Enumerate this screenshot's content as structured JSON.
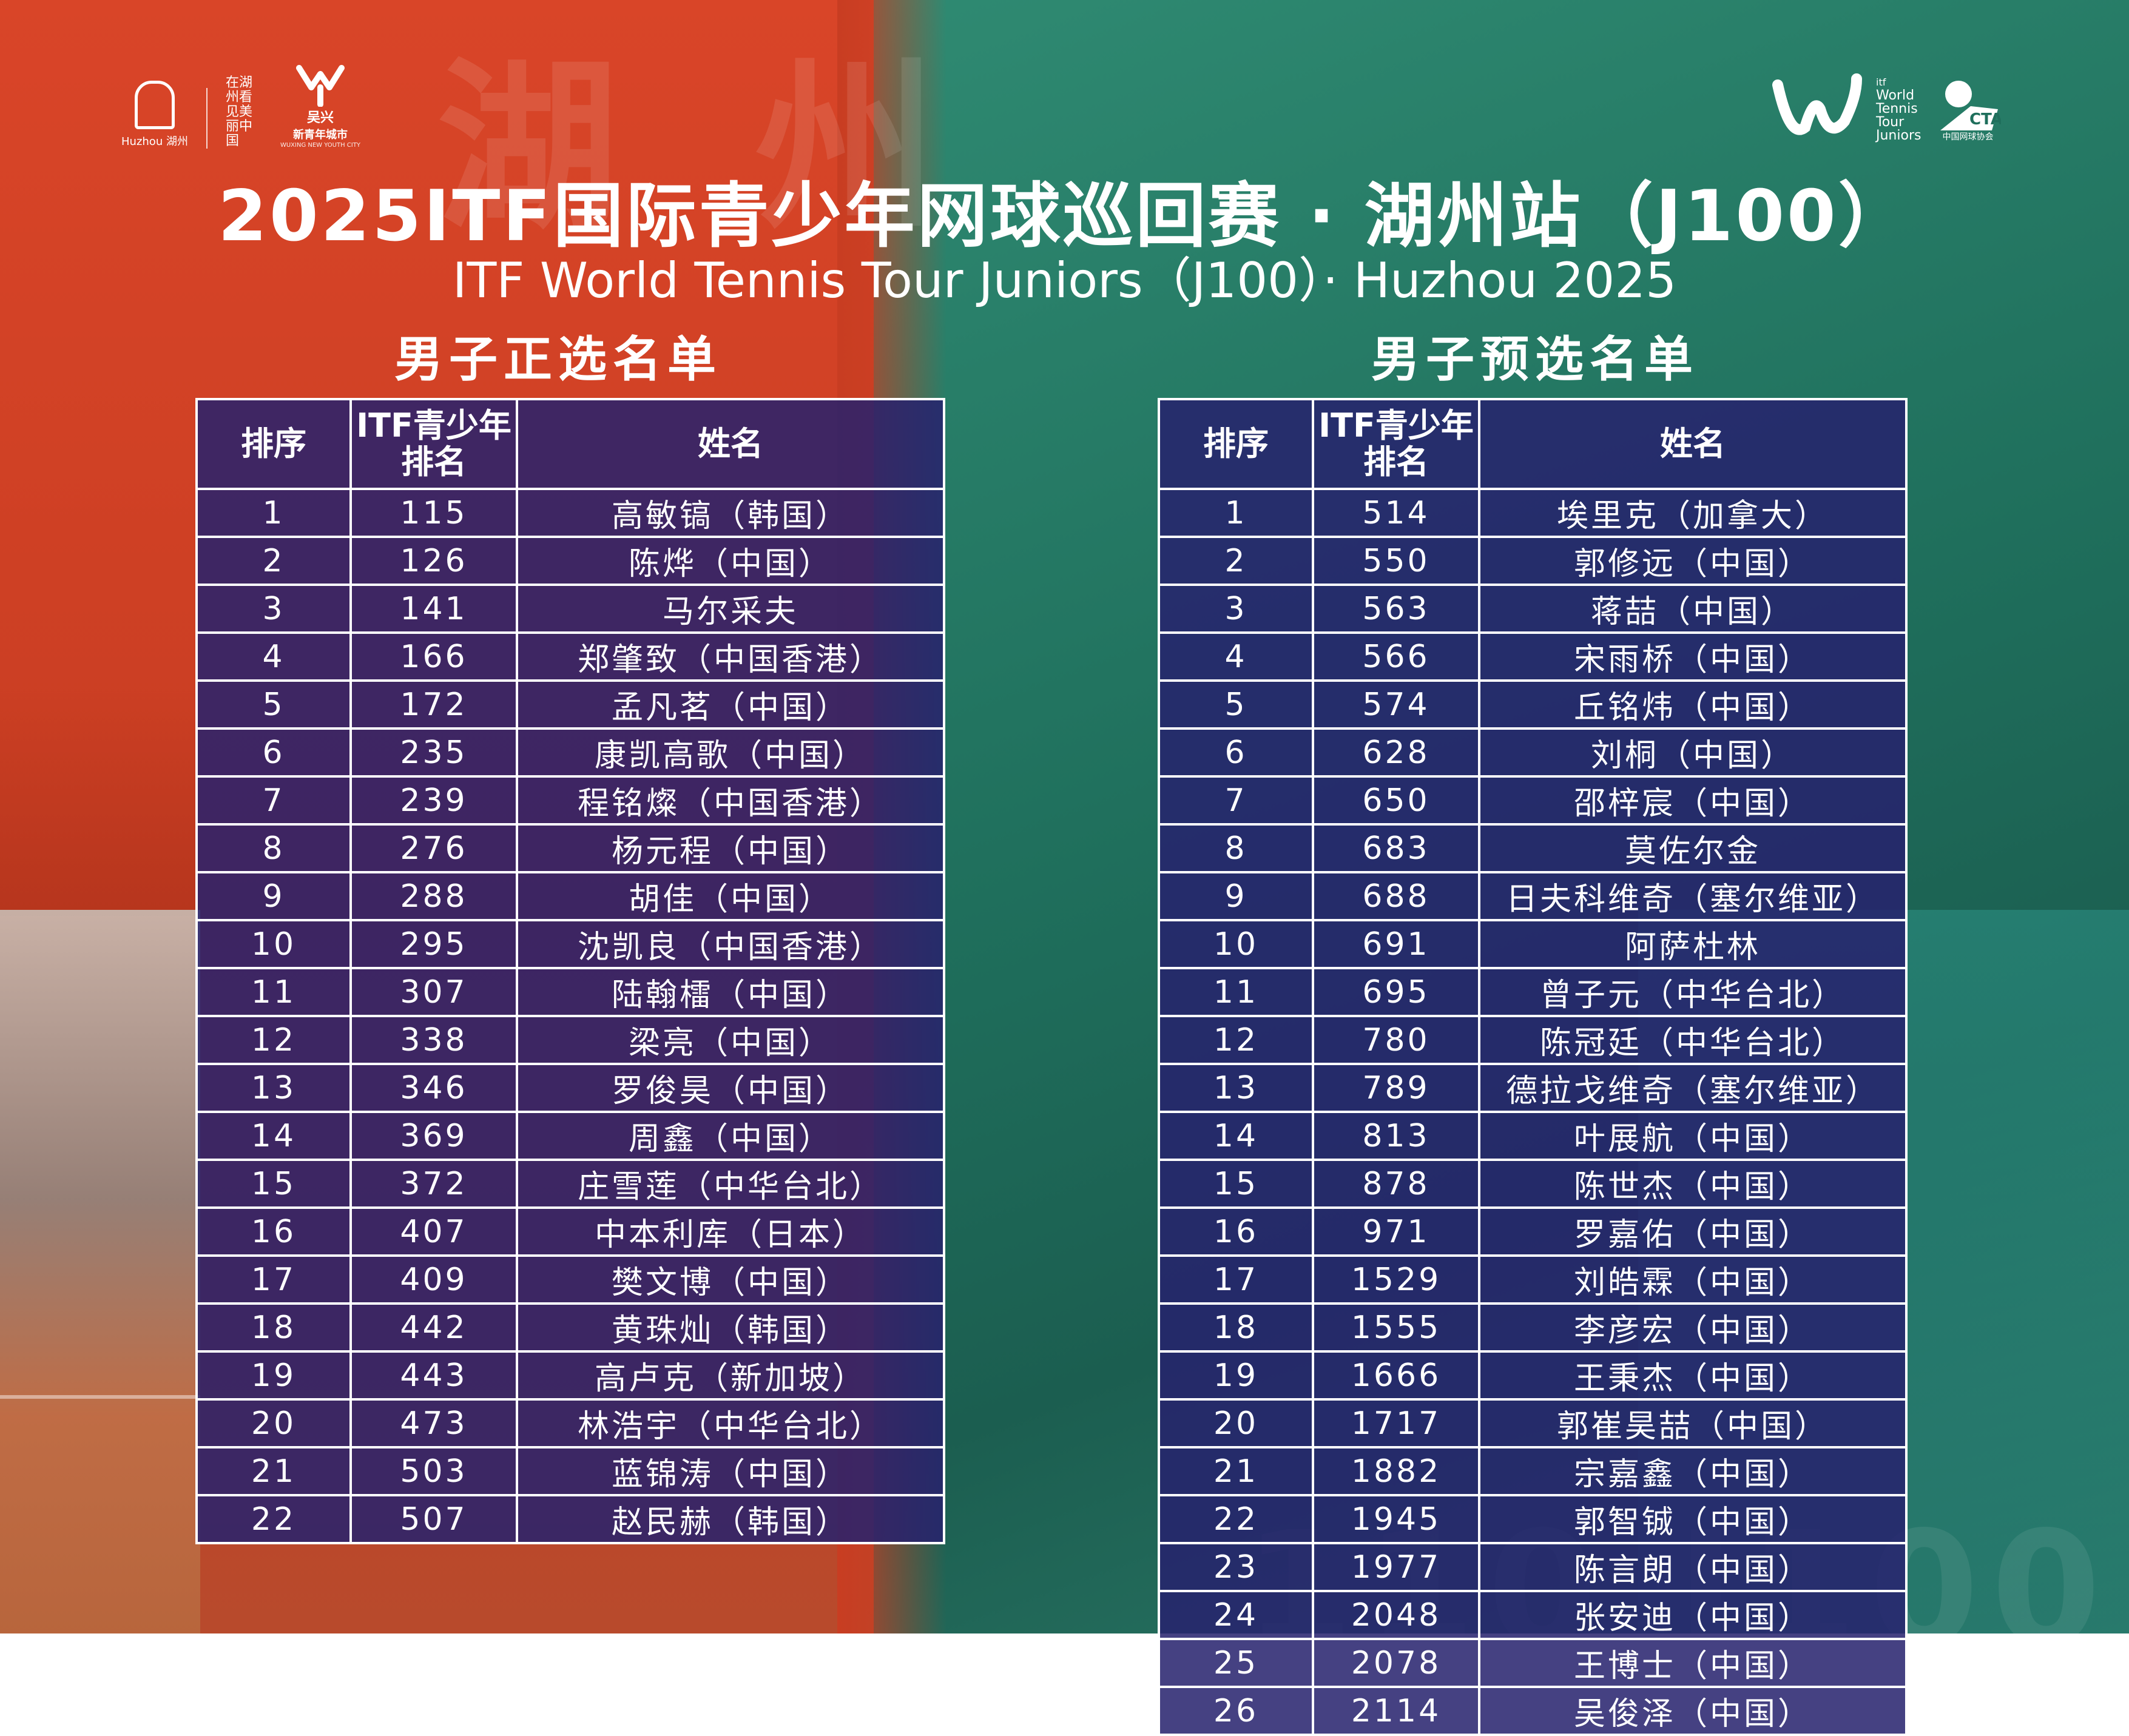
{
  "header": {
    "title_cn": "2025ITF国际青少年网球巡回赛 · 湖州站（J100）",
    "title_en": "ITF World Tennis Tour Juniors（J100）· Huzhou 2025",
    "background_glyphs": "湖 州",
    "bottom_watermark": "110 J100"
  },
  "logos": {
    "huzhou": "Huzhou 湖州",
    "calligraphy": "在湖州看见美丽中国",
    "wuxing": "吴兴",
    "wuxing_sub": "新青年城市",
    "wuxing_en": "WUXING NEW YOUTH CITY",
    "wtt_lines": [
      "World",
      "Tennis",
      "Tour",
      "Juniors"
    ],
    "itf_tag": "itf",
    "cta": "CTA",
    "cta_sub": "中国网球协会"
  },
  "colors": {
    "left_bg": "#d94528",
    "right_bg": "#2f8a72",
    "table_bg": "#26226e"
  },
  "main_draw": {
    "heading": "男子正选名单",
    "columns": [
      "排序",
      "ITF青少年排名",
      "姓名"
    ],
    "col2_line1": "ITF青少年",
    "col2_line2": "排名",
    "rows": [
      [
        "1",
        "115",
        "高敏镐（韩国）"
      ],
      [
        "2",
        "126",
        "陈烨（中国）"
      ],
      [
        "3",
        "141",
        "马尔采夫"
      ],
      [
        "4",
        "166",
        "郑肇致（中国香港）"
      ],
      [
        "5",
        "172",
        "孟凡茗（中国）"
      ],
      [
        "6",
        "235",
        "康凯高歌（中国）"
      ],
      [
        "7",
        "239",
        "程铭燦（中国香港）"
      ],
      [
        "8",
        "276",
        "杨元程（中国）"
      ],
      [
        "9",
        "288",
        "胡佳（中国）"
      ],
      [
        "10",
        "295",
        "沈凯良（中国香港）"
      ],
      [
        "11",
        "307",
        "陆翰檑（中国）"
      ],
      [
        "12",
        "338",
        "梁亮（中国）"
      ],
      [
        "13",
        "346",
        "罗俊昊（中国）"
      ],
      [
        "14",
        "369",
        "周鑫（中国）"
      ],
      [
        "15",
        "372",
        "庄雪莲（中华台北）"
      ],
      [
        "16",
        "407",
        "中本利库（日本）"
      ],
      [
        "17",
        "409",
        "樊文博（中国）"
      ],
      [
        "18",
        "442",
        "黄珠灿（韩国）"
      ],
      [
        "19",
        "443",
        "高卢克（新加坡）"
      ],
      [
        "20",
        "473",
        "林浩宇（中华台北）"
      ],
      [
        "21",
        "503",
        "蓝锦涛（中国）"
      ],
      [
        "22",
        "507",
        "赵民赫（韩国）"
      ]
    ]
  },
  "qualifying": {
    "heading": "男子预选名单",
    "columns": [
      "排序",
      "ITF青少年排名",
      "姓名"
    ],
    "col2_line1": "ITF青少年",
    "col2_line2": "排名",
    "rows": [
      [
        "1",
        "514",
        "埃里克（加拿大）"
      ],
      [
        "2",
        "550",
        "郭修远（中国）"
      ],
      [
        "3",
        "563",
        "蒋喆（中国）"
      ],
      [
        "4",
        "566",
        "宋雨桥（中国）"
      ],
      [
        "5",
        "574",
        "丘铭炜（中国）"
      ],
      [
        "6",
        "628",
        "刘桐（中国）"
      ],
      [
        "7",
        "650",
        "邵梓宸（中国）"
      ],
      [
        "8",
        "683",
        "莫佐尔金"
      ],
      [
        "9",
        "688",
        "日夫科维奇（塞尔维亚）"
      ],
      [
        "10",
        "691",
        "阿萨杜林"
      ],
      [
        "11",
        "695",
        "曾子元（中华台北）"
      ],
      [
        "12",
        "780",
        "陈冠廷（中华台北）"
      ],
      [
        "13",
        "789",
        "德拉戈维奇（塞尔维亚）"
      ],
      [
        "14",
        "813",
        "叶展航（中国）"
      ],
      [
        "15",
        "878",
        "陈世杰（中国）"
      ],
      [
        "16",
        "971",
        "罗嘉佑（中国）"
      ],
      [
        "17",
        "1529",
        "刘皓霖（中国）"
      ],
      [
        "18",
        "1555",
        "李彦宏（中国）"
      ],
      [
        "19",
        "1666",
        "王秉杰（中国）"
      ],
      [
        "20",
        "1717",
        "郭崔昊喆（中国）"
      ],
      [
        "21",
        "1882",
        "宗嘉鑫（中国）"
      ],
      [
        "22",
        "1945",
        "郭智铖（中国）"
      ],
      [
        "23",
        "1977",
        "陈言朗（中国）"
      ],
      [
        "24",
        "2048",
        "张安迪（中国）"
      ],
      [
        "25",
        "2078",
        "王博士（中国）"
      ],
      [
        "26",
        "2114",
        "吴俊泽（中国）"
      ]
    ]
  }
}
